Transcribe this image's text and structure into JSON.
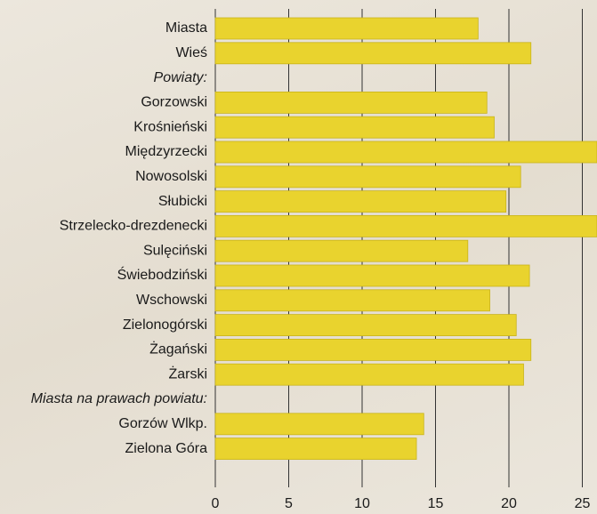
{
  "chart_data": {
    "type": "bar",
    "orientation": "horizontal",
    "categories": [
      "Miasta",
      "Wieś",
      "Powiaty:",
      "Gorzowski",
      "Krośnieński",
      "Międzyrzecki",
      "Nowosolski",
      "Słubicki",
      "Strzelecko-drezdenecki",
      "Sulęciński",
      "Świebodziński",
      "Wschowski",
      "Zielonogórski",
      "Żagański",
      "Żarski",
      "Miasta na prawach powiatu:",
      "Gorzów Wlkp.",
      "Zielona Góra"
    ],
    "values": [
      17.9,
      21.5,
      null,
      18.5,
      19.0,
      26.0,
      20.8,
      19.8,
      26.0,
      17.2,
      21.4,
      18.7,
      20.5,
      21.5,
      21.0,
      null,
      14.2,
      13.7
    ],
    "color": "#e9d32e",
    "xlim": [
      0,
      26
    ],
    "xticks": [
      0,
      5,
      10,
      15,
      20,
      25
    ],
    "grid": true
  }
}
